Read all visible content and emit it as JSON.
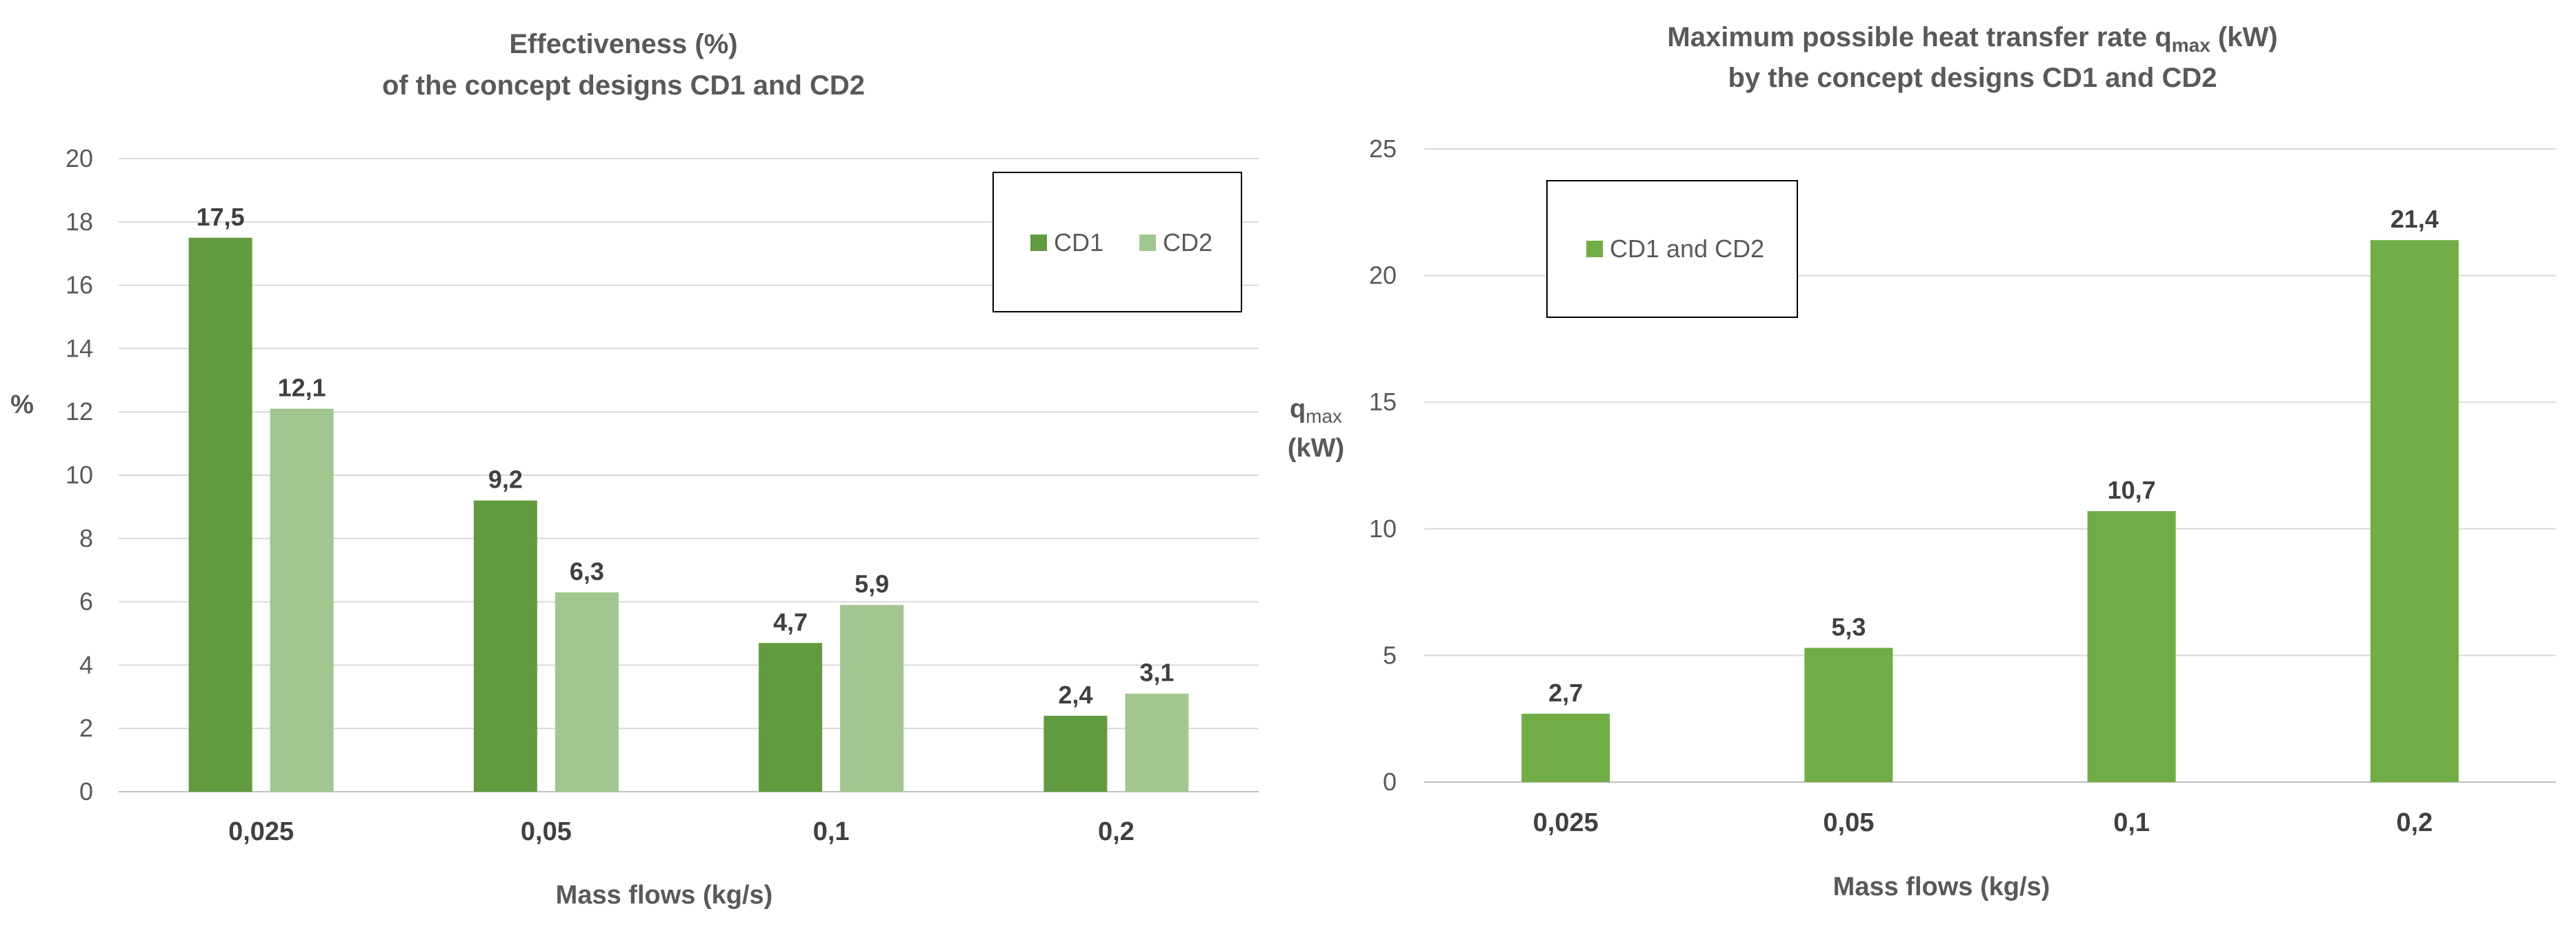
{
  "chart_data": [
    {
      "type": "bar",
      "title_line1": "Effectiveness (%)",
      "title_line2": "of the concept designs CD1 and CD2",
      "xlabel": "Mass flows (kg/s)",
      "ylabel": "%",
      "ylim": [
        0,
        20
      ],
      "yticks": [
        0,
        2,
        4,
        6,
        8,
        10,
        12,
        14,
        16,
        18,
        20
      ],
      "grid": true,
      "legend_position": "top-right",
      "categories": [
        "0,025",
        "0,05",
        "0,1",
        "0,2"
      ],
      "series": [
        {
          "name": "CD1",
          "color": "#629a40",
          "values": [
            17.5,
            9.2,
            4.7,
            2.4
          ],
          "labels": [
            "17,5",
            "9,2",
            "4,7",
            "2,4"
          ]
        },
        {
          "name": "CD2",
          "color": "#a2c690",
          "values": [
            12.1,
            6.3,
            5.9,
            3.1
          ],
          "labels": [
            "12,1",
            "6,3",
            "5,9",
            "3,1"
          ]
        }
      ]
    },
    {
      "type": "bar",
      "title_line1_prefix": "Maximum possible heat transfer rate q",
      "title_line1_sub": "max",
      "title_line1_suffix": " (kW)",
      "title_line2": "by the concept designs CD1 and CD2",
      "xlabel": "Mass flows (kg/s)",
      "ylabel_main": "q",
      "ylabel_sub": "max",
      "ylabel_unit": "(kW)",
      "ylim": [
        0,
        25
      ],
      "yticks": [
        0,
        5,
        10,
        15,
        20,
        25
      ],
      "grid": true,
      "legend_position": "top-left",
      "categories": [
        "0,025",
        "0,05",
        "0,1",
        "0,2"
      ],
      "series": [
        {
          "name": "CD1 and CD2",
          "color": "#70ad47",
          "values": [
            2.7,
            5.3,
            10.7,
            21.4
          ],
          "labels": [
            "2,7",
            "5,3",
            "10,7",
            "21,4"
          ]
        }
      ]
    }
  ]
}
